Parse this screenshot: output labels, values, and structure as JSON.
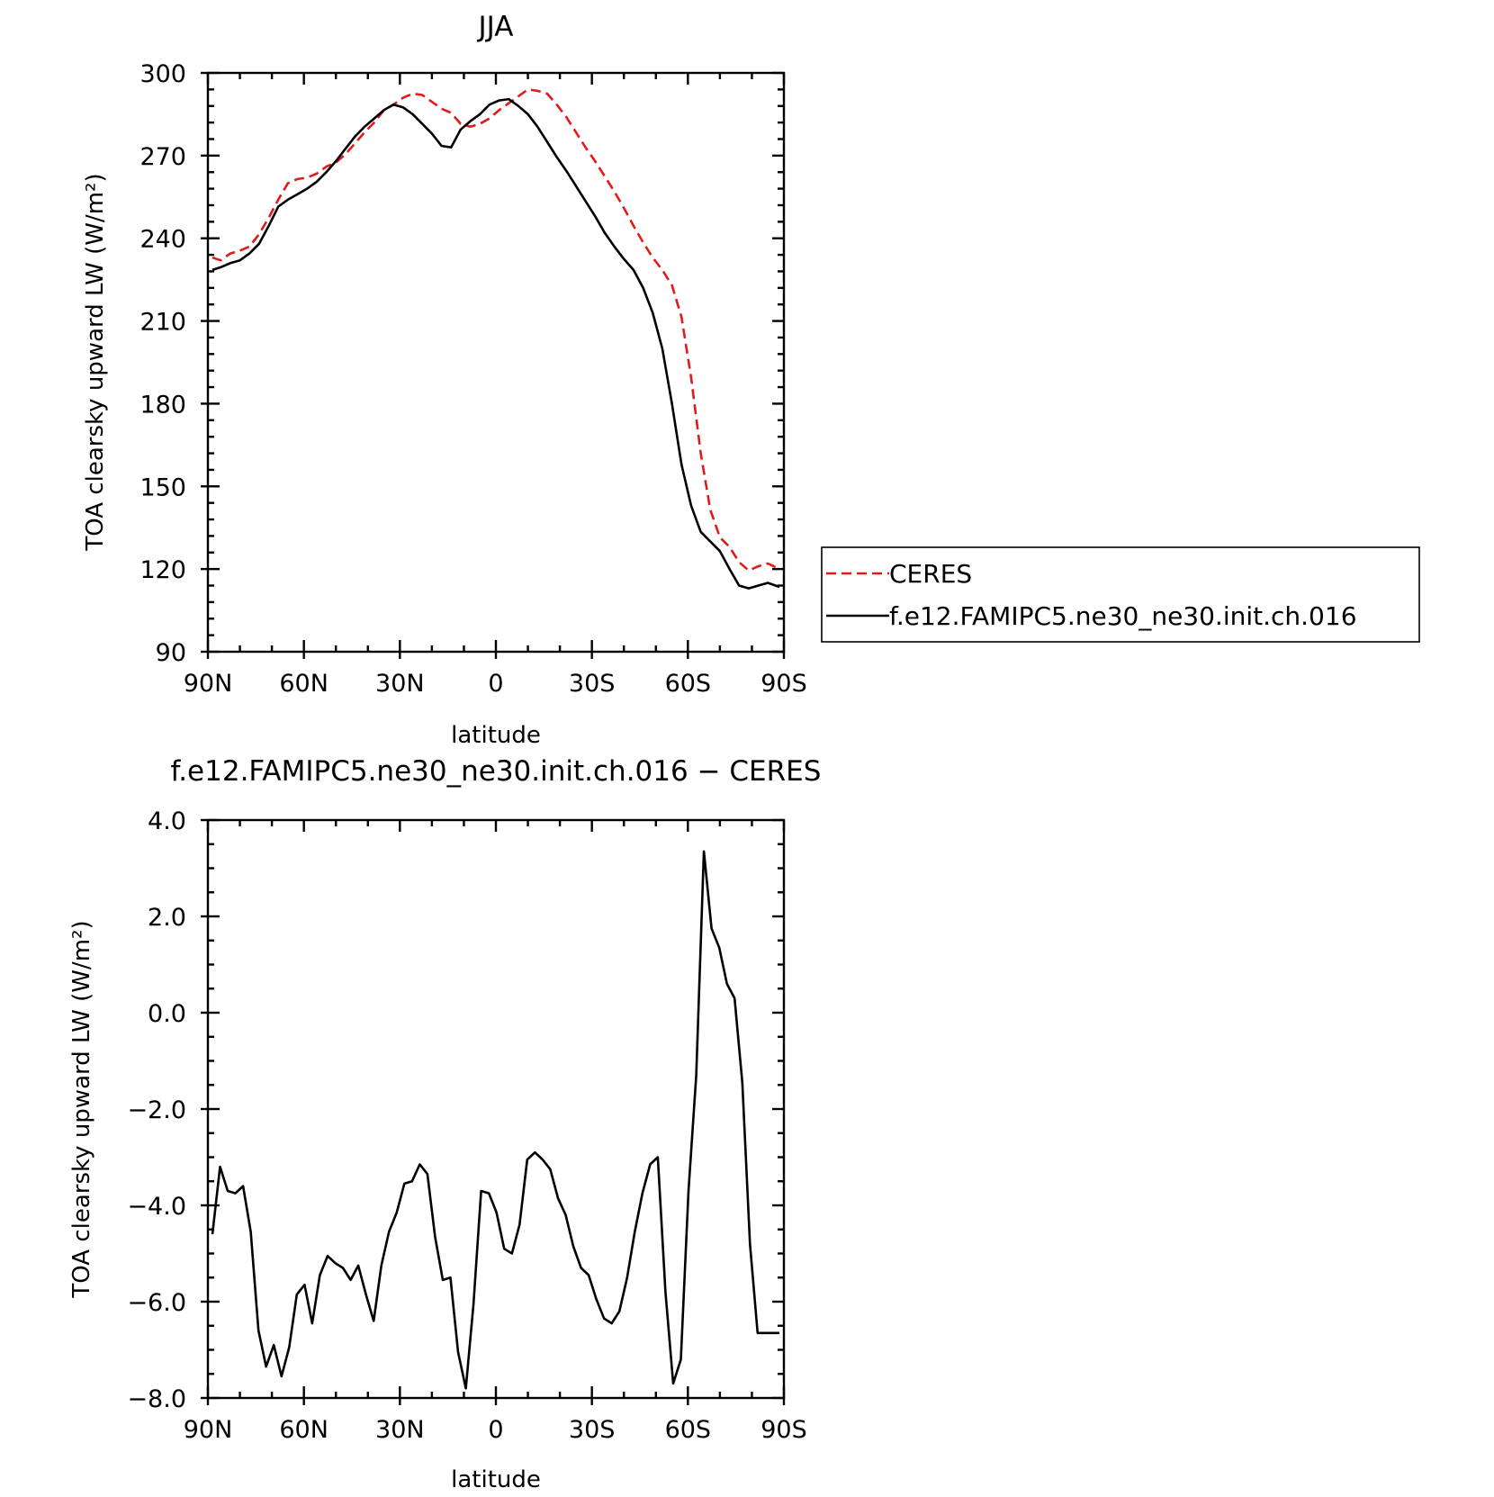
{
  "chart_data": [
    {
      "type": "line",
      "title": "JJA",
      "xlabel": "latitude",
      "ylabel": "TOA clearsky upward LW (W/m²)",
      "xlim": [
        90,
        -90
      ],
      "ylim": [
        90,
        300
      ],
      "x_ticks": [
        {
          "value": 90,
          "label": "90N"
        },
        {
          "value": 60,
          "label": "60N"
        },
        {
          "value": 30,
          "label": "30N"
        },
        {
          "value": 0,
          "label": "0"
        },
        {
          "value": -30,
          "label": "30S"
        },
        {
          "value": -60,
          "label": "60S"
        },
        {
          "value": -90,
          "label": "90S"
        }
      ],
      "y_ticks": [
        {
          "value": 90,
          "label": "90"
        },
        {
          "value": 120,
          "label": "120"
        },
        {
          "value": 150,
          "label": "150"
        },
        {
          "value": 180,
          "label": "180"
        },
        {
          "value": 210,
          "label": "210"
        },
        {
          "value": 240,
          "label": "240"
        },
        {
          "value": 270,
          "label": "270"
        },
        {
          "value": 300,
          "label": "300"
        }
      ],
      "legend_position": "right",
      "x": [
        88.6,
        86,
        83,
        80,
        77,
        74,
        71,
        68,
        65,
        62,
        59,
        56,
        53,
        50,
        47,
        44,
        41,
        38,
        35,
        32,
        29,
        26,
        23,
        20,
        17,
        14,
        11,
        8,
        5,
        2,
        -1,
        -4,
        -7,
        -10,
        -13,
        -16,
        -19,
        -22,
        -25,
        -28,
        -31,
        -34,
        -37,
        -40,
        -43,
        -46,
        -49,
        -52,
        -55,
        -58,
        -61,
        -64,
        -67,
        -70,
        -73,
        -76,
        -79,
        -82,
        -85,
        -88.6
      ],
      "series": [
        {
          "name": "CERES",
          "color": "#e31a1c",
          "dash": "dashed",
          "values": [
            233,
            232,
            234.5,
            235.5,
            237,
            241.5,
            247.5,
            254,
            260,
            261.5,
            262,
            263.5,
            266,
            267.5,
            270.5,
            274.5,
            278.5,
            282,
            286.5,
            288.5,
            291,
            292.5,
            292,
            289.5,
            287,
            285.5,
            281.5,
            280.5,
            281.5,
            283.5,
            286.5,
            289,
            291.5,
            294,
            293.5,
            292.5,
            288.5,
            284,
            278.5,
            273,
            268,
            262.5,
            257,
            251,
            244.5,
            238.5,
            233,
            228.5,
            223,
            211.5,
            189.5,
            162,
            141.5,
            131.5,
            128,
            122.5,
            119.5,
            121,
            122,
            120
          ]
        },
        {
          "name": "f.e12.FAMIPC5.ne30_ne30.init.ch.016",
          "color": "#000000",
          "dash": "solid",
          "values": [
            228.5,
            229.5,
            231,
            232,
            234.5,
            238,
            244.5,
            251.5,
            254,
            256,
            258,
            260.5,
            264,
            268,
            272.5,
            277,
            280.5,
            283.5,
            286.5,
            288.5,
            287.5,
            285,
            281.5,
            278,
            273.5,
            273,
            279.5,
            282.5,
            285,
            288.5,
            290,
            290.5,
            288,
            285,
            280.5,
            275,
            269.5,
            264.5,
            259,
            253.5,
            248,
            242,
            237,
            232.5,
            228.5,
            222,
            213,
            200,
            180,
            158,
            143,
            133.5,
            130,
            126.5,
            120,
            114,
            113,
            114,
            115,
            113.5
          ]
        }
      ]
    },
    {
      "type": "line",
      "title": "f.e12.FAMIPC5.ne30_ne30.init.ch.016 − CERES",
      "xlabel": "latitude",
      "ylabel": "TOA clearsky upward LW (W/m²)",
      "xlim": [
        90,
        -90
      ],
      "ylim": [
        -8,
        4
      ],
      "x_ticks": [
        {
          "value": 90,
          "label": "90N"
        },
        {
          "value": 60,
          "label": "60N"
        },
        {
          "value": 30,
          "label": "30N"
        },
        {
          "value": 0,
          "label": "0"
        },
        {
          "value": -30,
          "label": "30S"
        },
        {
          "value": -60,
          "label": "60S"
        },
        {
          "value": -90,
          "label": "90S"
        }
      ],
      "y_ticks": [
        {
          "value": -8,
          "label": "−8.0"
        },
        {
          "value": -6,
          "label": "−6.0"
        },
        {
          "value": -4,
          "label": "−4.0"
        },
        {
          "value": -2,
          "label": "−2.0"
        },
        {
          "value": 0,
          "label": "0.0"
        },
        {
          "value": 2,
          "label": "2.0"
        },
        {
          "value": 4,
          "label": "4.0"
        }
      ],
      "x": [
        88.6,
        86.2,
        83.8,
        81.4,
        79,
        76.6,
        74.2,
        71.8,
        69.4,
        67,
        64.6,
        62.2,
        59.8,
        57.4,
        55,
        52.6,
        50.2,
        47.8,
        45.4,
        43,
        40.6,
        38.2,
        35.8,
        33.4,
        31,
        28.6,
        26.2,
        23.8,
        21.4,
        19,
        16.6,
        14.2,
        11.8,
        9.4,
        7,
        4.6,
        2.2,
        -0.2,
        -2.6,
        -5,
        -7.4,
        -9.8,
        -12.2,
        -14.6,
        -17,
        -19.4,
        -21.8,
        -24.2,
        -26.6,
        -29,
        -31.4,
        -33.8,
        -36.2,
        -38.6,
        -41,
        -43.4,
        -45.8,
        -48.2,
        -50.6,
        -53,
        -55.4,
        -57.8,
        -60.2,
        -62.6,
        -65,
        -67.4,
        -69.8,
        -72.2,
        -74.6,
        -77,
        -79.4,
        -81.8,
        -84.2,
        -86.6,
        -88.6
      ],
      "series": [
        {
          "name": "",
          "color": "#000000",
          "dash": "solid",
          "values": [
            -4.6,
            -3.2,
            -3.7,
            -3.75,
            -3.6,
            -4.55,
            -6.6,
            -7.35,
            -6.9,
            -7.55,
            -6.95,
            -5.85,
            -5.65,
            -6.45,
            -5.45,
            -5.05,
            -5.2,
            -5.3,
            -5.55,
            -5.25,
            -5.85,
            -6.4,
            -5.25,
            -4.55,
            -4.15,
            -3.55,
            -3.5,
            -3.15,
            -3.35,
            -4.65,
            -5.55,
            -5.5,
            -7.05,
            -7.8,
            -6.05,
            -3.7,
            -3.75,
            -4.15,
            -4.9,
            -5.0,
            -4.4,
            -3.05,
            -2.9,
            -3.05,
            -3.25,
            -3.85,
            -4.2,
            -4.85,
            -5.3,
            -5.45,
            -5.95,
            -6.35,
            -6.45,
            -6.2,
            -5.5,
            -4.55,
            -3.75,
            -3.15,
            -3.0,
            -5.8,
            -7.7,
            -7.2,
            -3.7,
            -1.3,
            3.35,
            1.75,
            1.35,
            0.6,
            0.3,
            -1.45,
            -4.8,
            -6.65,
            -6.65,
            -6.65,
            -6.65
          ]
        }
      ]
    }
  ]
}
